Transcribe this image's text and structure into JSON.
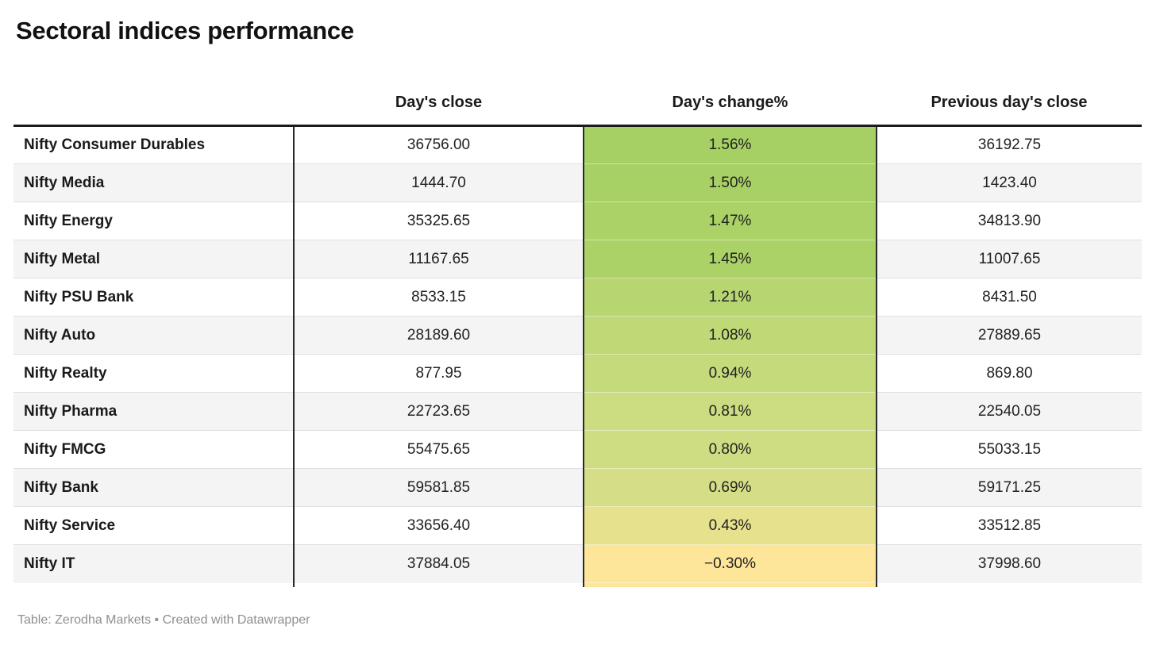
{
  "chart_data": {
    "type": "table",
    "title": "Sectoral indices performance",
    "columns": [
      "",
      "Day's close",
      "Day's change%",
      "Previous day's close"
    ],
    "rows": [
      {
        "label": "Nifty Consumer Durables",
        "days_close": "36756.00",
        "days_change": "1.56%",
        "prev_close": "36192.75",
        "change_bg": "#a6d063"
      },
      {
        "label": "Nifty Media",
        "days_close": "1444.70",
        "days_change": "1.50%",
        "prev_close": "1423.40",
        "change_bg": "#a8d165"
      },
      {
        "label": "Nifty Energy",
        "days_close": "35325.65",
        "days_change": "1.47%",
        "prev_close": "34813.90",
        "change_bg": "#aad266"
      },
      {
        "label": "Nifty Metal",
        "days_close": "11167.65",
        "days_change": "1.45%",
        "prev_close": "11007.65",
        "change_bg": "#abd267"
      },
      {
        "label": "Nifty PSU Bank",
        "days_close": "8533.15",
        "days_change": "1.21%",
        "prev_close": "8431.50",
        "change_bg": "#b7d671"
      },
      {
        "label": "Nifty Auto",
        "days_close": "28189.60",
        "days_change": "1.08%",
        "prev_close": "27889.65",
        "change_bg": "#bed976"
      },
      {
        "label": "Nifty Realty",
        "days_close": "877.95",
        "days_change": "0.94%",
        "prev_close": "869.80",
        "change_bg": "#c5da7b"
      },
      {
        "label": "Nifty Pharma",
        "days_close": "22723.65",
        "days_change": "0.81%",
        "prev_close": "22540.05",
        "change_bg": "#ccdc80"
      },
      {
        "label": "Nifty FMCG",
        "days_close": "55475.65",
        "days_change": "0.80%",
        "prev_close": "55033.15",
        "change_bg": "#cedd82"
      },
      {
        "label": "Nifty Bank",
        "days_close": "59581.85",
        "days_change": "0.69%",
        "prev_close": "59171.25",
        "change_bg": "#d5de86"
      },
      {
        "label": "Nifty Service",
        "days_close": "33656.40",
        "days_change": "0.43%",
        "prev_close": "33512.85",
        "change_bg": "#e6e18d"
      },
      {
        "label": "Nifty IT",
        "days_close": "37884.05",
        "days_change": "−0.30%",
        "prev_close": "37998.60",
        "change_bg": "#fde69a"
      }
    ],
    "footer": "Table: Zerodha Markets • Created with Datawrapper",
    "layout_hints": {
      "heatmap_column": "Day's change%",
      "heatmap_scale": "green (high) to yellow (low/negative)",
      "row_stripe_color": "#f4f4f4",
      "column_divider_color": "#2a2a2a",
      "header_rule_color": "#1a1a1a",
      "row_separator_color": "#e0e0e0",
      "footer_text_color": "#8f8f8f"
    }
  }
}
